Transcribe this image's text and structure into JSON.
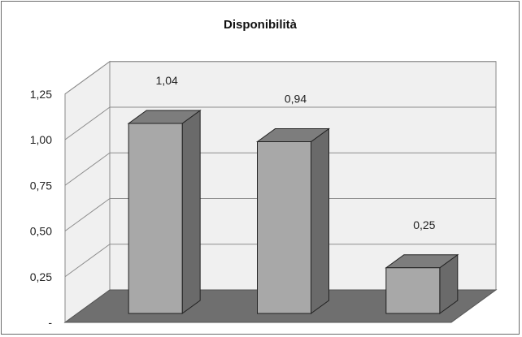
{
  "chart_data": {
    "type": "bar",
    "title": "Disponibilità",
    "categories": [
      "",
      "",
      ""
    ],
    "values": [
      1.04,
      0.94,
      0.25
    ],
    "data_labels": [
      "1,04",
      "0,94",
      "0,25"
    ],
    "y_ticks": [
      "-",
      "0,25",
      "0,50",
      "0,75",
      "1,00",
      "1,25"
    ],
    "ylim": [
      0,
      1.25
    ],
    "xlabel": "",
    "ylabel": "",
    "three_d": true,
    "grid": true,
    "legend": "none",
    "colors": {
      "bar_front": "#a8a8a8",
      "bar_top": "#7d7d7d",
      "bar_side": "#6a6a6a",
      "wall": "#f0f0f0",
      "floor": "#6f6f6f"
    }
  }
}
